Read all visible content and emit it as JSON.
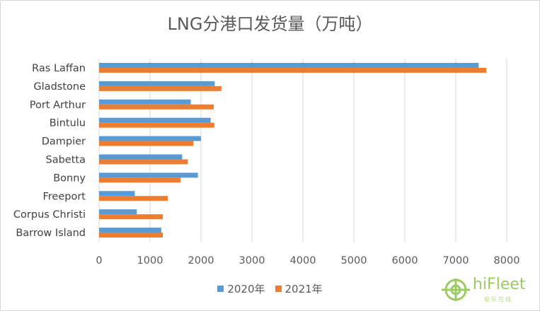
{
  "chart_data": {
    "type": "bar",
    "orientation": "horizontal",
    "title": "LNG分港口发货量（万吨）",
    "categories": [
      "Ras Laffan",
      "Gladstone",
      "Port Arthur",
      "Bintulu",
      "Dampier",
      "Sabetta",
      "Bonny",
      "Freeport",
      "Corpus Christi",
      "Barrow Island"
    ],
    "series": [
      {
        "name": "2020年",
        "color": "#5b9bd5",
        "values": [
          7450,
          2270,
          1800,
          2190,
          2000,
          1630,
          1940,
          700,
          740,
          1220
        ]
      },
      {
        "name": "2021年",
        "color": "#ed7d31",
        "values": [
          7600,
          2400,
          2250,
          2260,
          1850,
          1740,
          1600,
          1350,
          1250,
          1250
        ]
      }
    ],
    "xlim": [
      0,
      8000
    ],
    "xticks": [
      0,
      1000,
      2000,
      3000,
      4000,
      5000,
      6000,
      7000,
      8000
    ],
    "grid": true,
    "legend_position": "bottom"
  },
  "watermark": {
    "brand": "hiFleet",
    "tagline": "船队在线"
  }
}
